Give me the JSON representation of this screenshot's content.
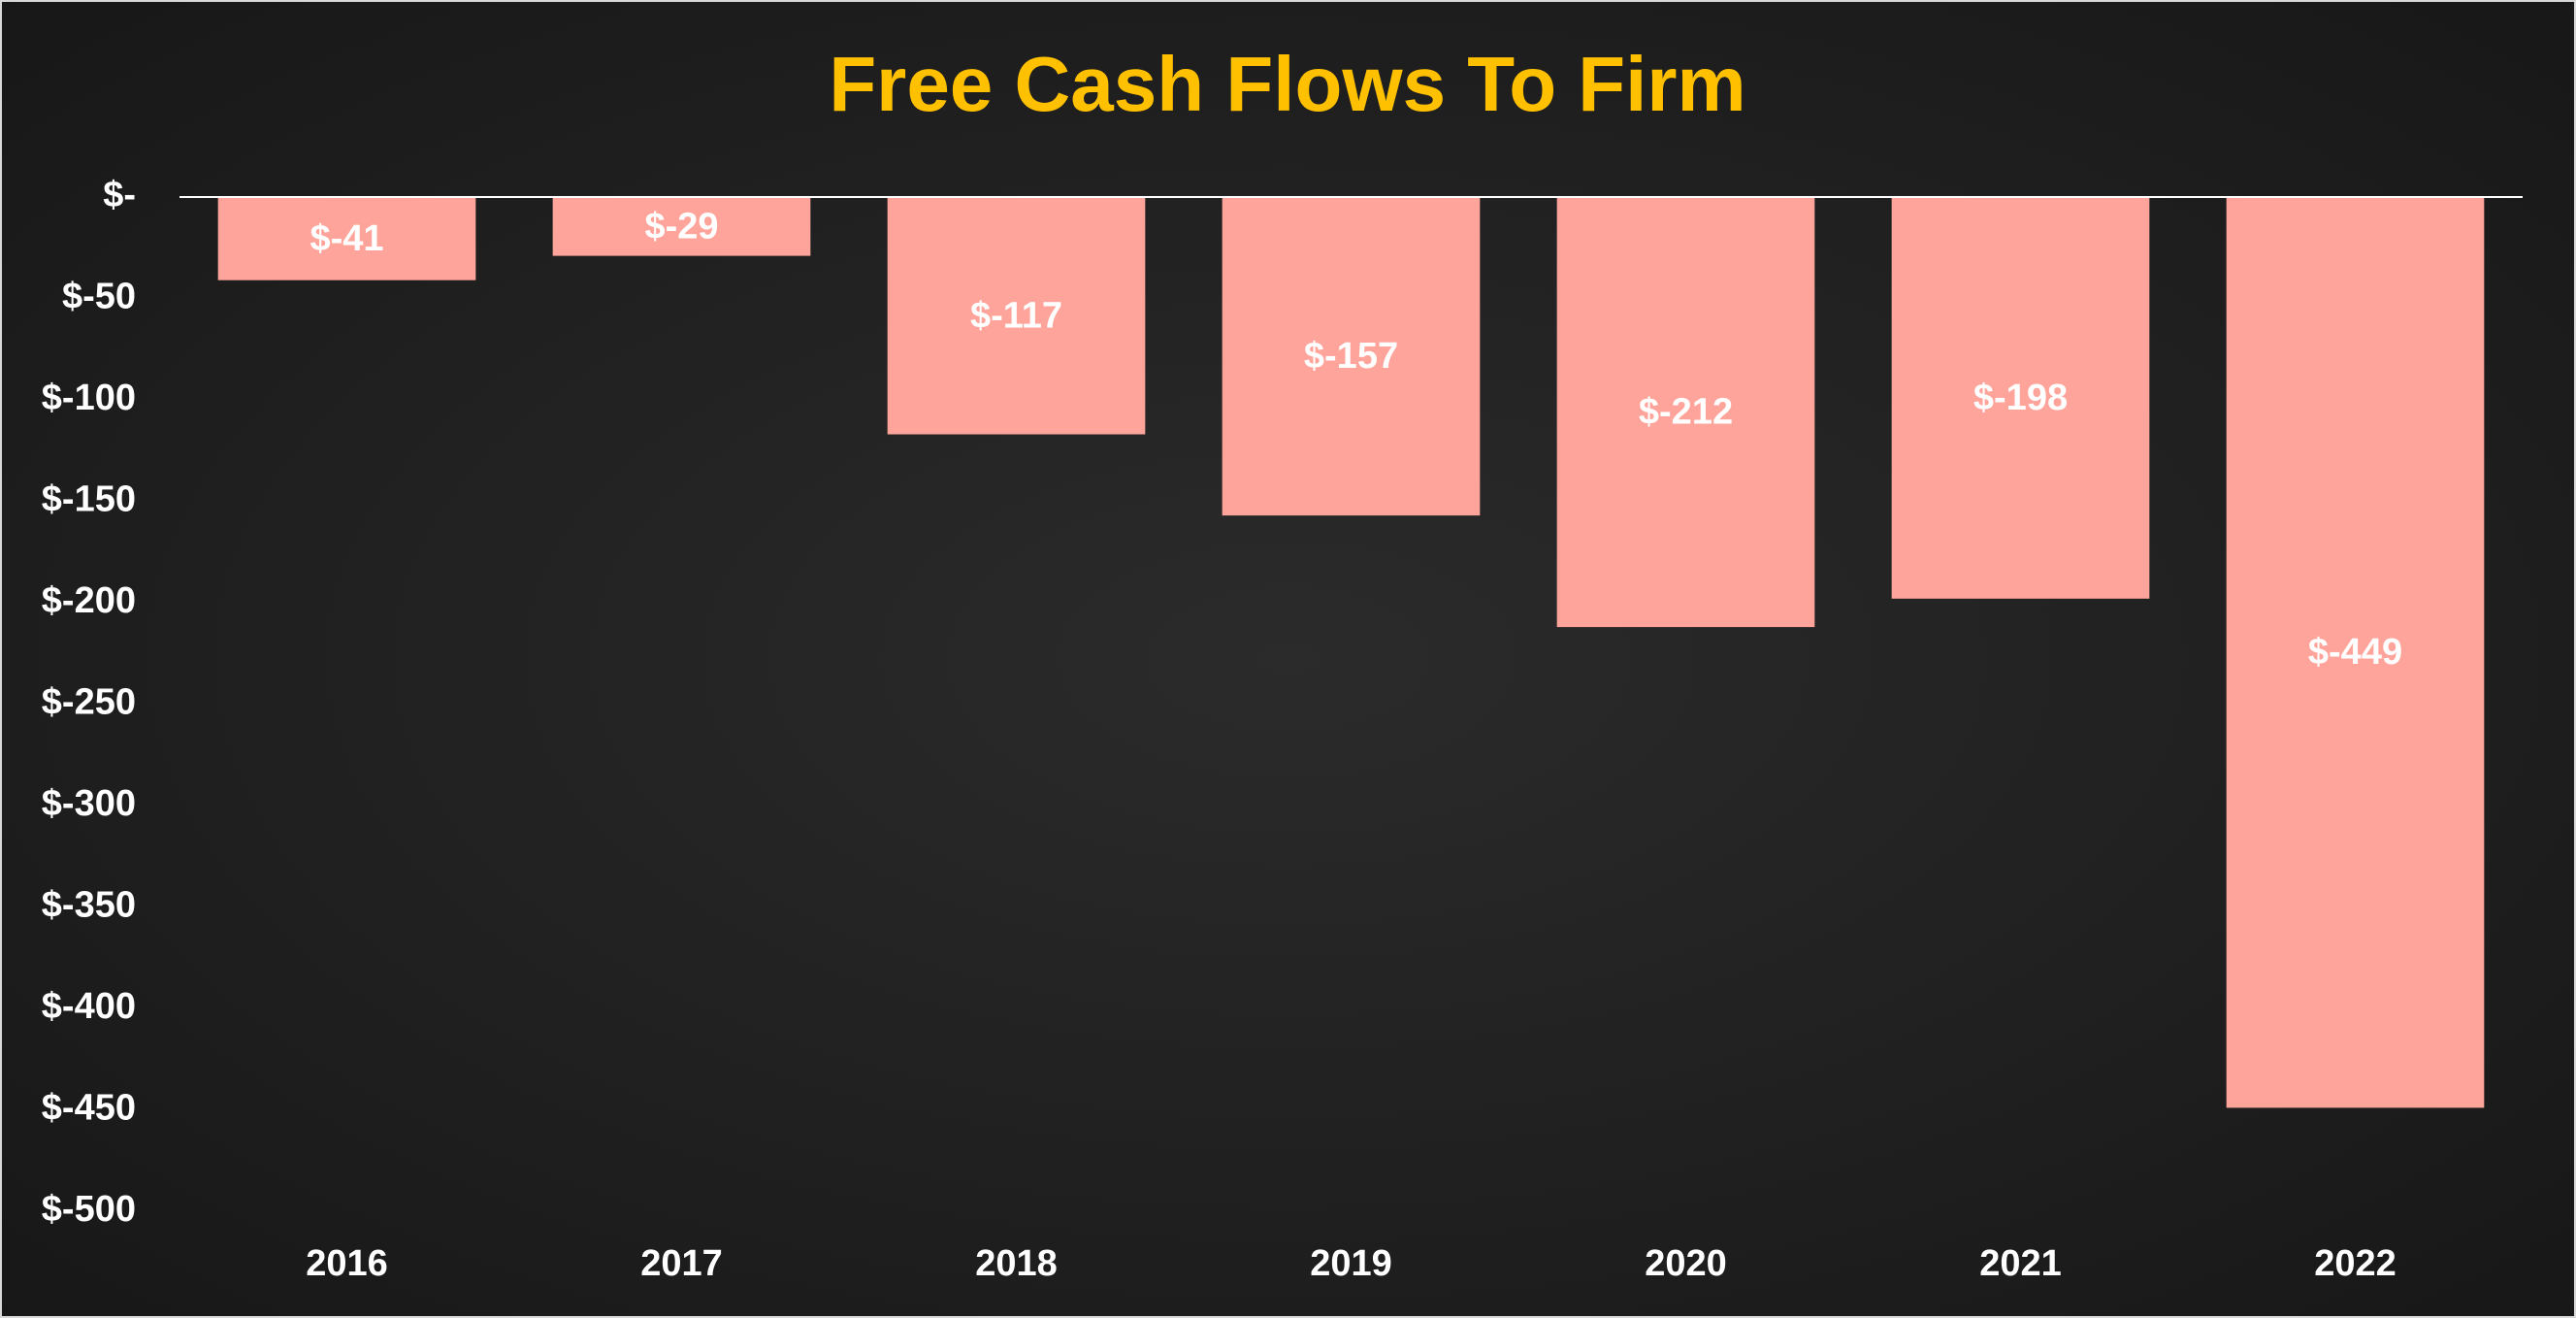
{
  "chart_data": {
    "type": "bar",
    "title": "Free Cash Flows To Firm",
    "categories": [
      "2016",
      "2017",
      "2018",
      "2019",
      "2020",
      "2021",
      "2022"
    ],
    "values": [
      -41,
      -29,
      -117,
      -157,
      -212,
      -198,
      -449
    ],
    "value_labels": [
      "$-41",
      "$-29",
      "$-117",
      "$-157",
      "$-212",
      "$-198",
      "$-449"
    ],
    "color": "#ffa49b",
    "ylim": [
      -500,
      0
    ],
    "yticks": [
      {
        "value": 0,
        "label": "$-"
      },
      {
        "value": -50,
        "label": "$-50"
      },
      {
        "value": -100,
        "label": "$-100"
      },
      {
        "value": -150,
        "label": "$-150"
      },
      {
        "value": -200,
        "label": "$-200"
      },
      {
        "value": -250,
        "label": "$-250"
      },
      {
        "value": -300,
        "label": "$-300"
      },
      {
        "value": -350,
        "label": "$-350"
      },
      {
        "value": -400,
        "label": "$-400"
      },
      {
        "value": -450,
        "label": "$-450"
      },
      {
        "value": -500,
        "label": "$-500"
      }
    ],
    "grid": false
  }
}
